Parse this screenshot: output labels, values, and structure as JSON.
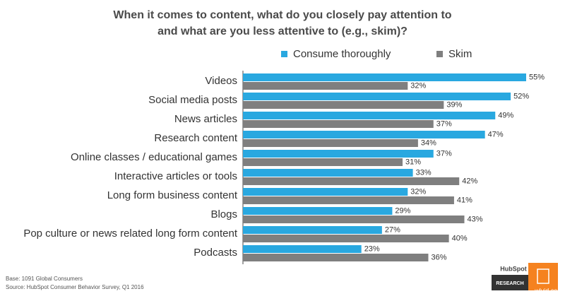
{
  "chart_data": {
    "type": "bar",
    "orientation": "horizontal",
    "title": [
      "When it comes to content, what do you closely pay attention to",
      "and what are you less attentive to (e.g., skim)?"
    ],
    "categories": [
      "Videos",
      "Social media posts",
      "News articles",
      "Research content",
      "Online classes / educational games",
      "Interactive articles or tools",
      "Long form business content",
      "Blogs",
      "Pop culture or news related long form content",
      "Podcasts"
    ],
    "series": [
      {
        "name": "Consume thoroughly",
        "color": "#29a8e0",
        "values": [
          55,
          52,
          49,
          47,
          37,
          33,
          32,
          29,
          27,
          23
        ],
        "value_labels": [
          "55%",
          "52%",
          "49%",
          "47%",
          "37%",
          "33%",
          "32%",
          "29%",
          "27%",
          "23%"
        ]
      },
      {
        "name": "Skim",
        "color": "#7f7f7f",
        "values": [
          32,
          39,
          37,
          34,
          31,
          42,
          41,
          43,
          40,
          36
        ],
        "value_labels": [
          "32%",
          "39%",
          "37%",
          "34%",
          "31%",
          "42%",
          "41%",
          "43%",
          "40%",
          "36%"
        ]
      }
    ],
    "notes": [
      "Base: 1091 Global Consumers",
      "Source: HubSpot Consumer Behavior Survey, Q1 2016"
    ],
    "logo": {
      "brand": "HubSpot",
      "label": "RESEARCH"
    },
    "watermark": "wlvid.com"
  }
}
